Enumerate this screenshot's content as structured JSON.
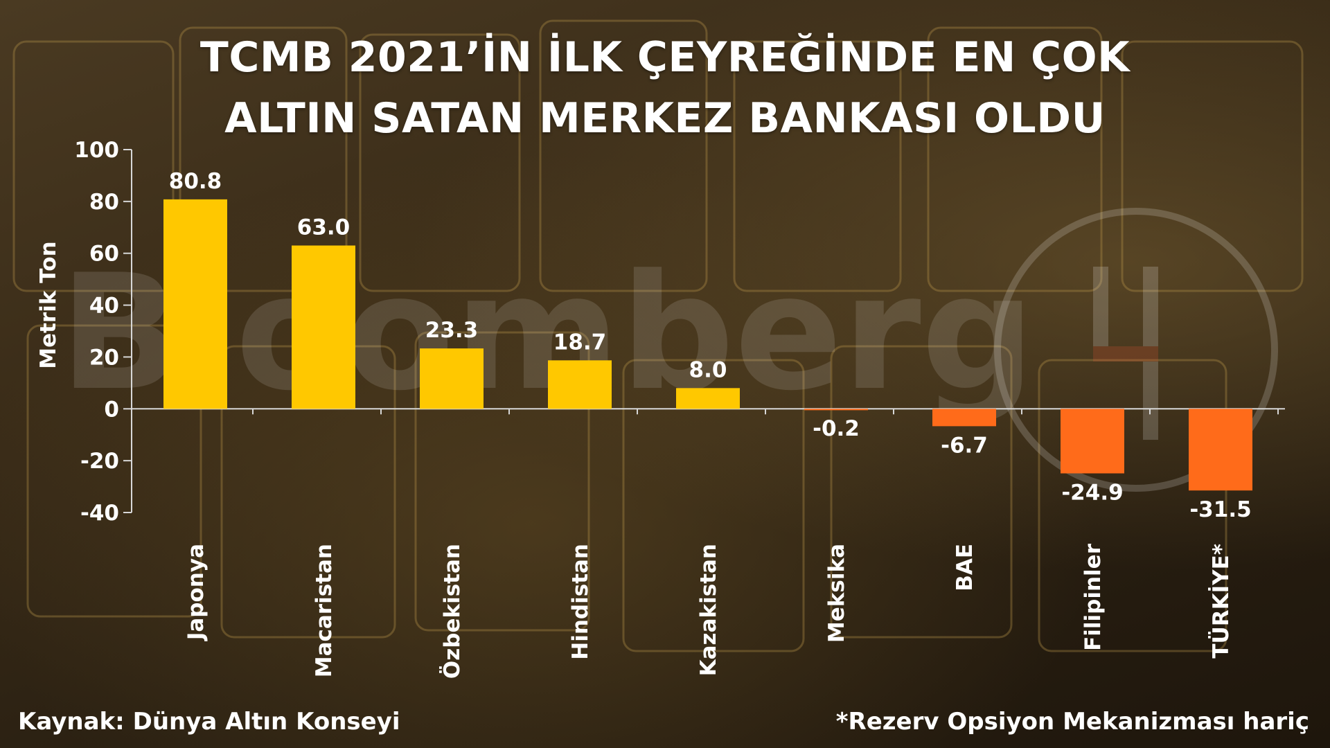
{
  "title_lines": [
    "TCMB 2021’İN İLK ÇEYREĞİNDE EN ÇOK",
    "ALTIN SATAN MERKEZ BANKASI OLDU"
  ],
  "watermark": "Bloomberg",
  "source": "Kaynak: Dünya Altın Konseyi",
  "footnote": "*Rezerv Opsiyon Mekanizması hariç",
  "colors": {
    "positive": "#FFC800",
    "negative": "#FF6B1A",
    "text": "#FFFFFF"
  },
  "chart_data": {
    "type": "bar",
    "title": "TCMB 2021’İN İLK ÇEYREĞİNDE EN ÇOK ALTIN SATAN MERKEZ BANKASI OLDU",
    "xlabel": "",
    "ylabel": "Metrik Ton",
    "ylim": [
      -40,
      100
    ],
    "yticks": [
      100,
      80,
      60,
      40,
      20,
      0,
      -20,
      -40
    ],
    "grid": false,
    "categories": [
      "Japonya",
      "Macaristan",
      "Özbekistan",
      "Hindistan",
      "Kazakistan",
      "Meksika",
      "BAE",
      "Filipinler",
      "TÜRKİYE*"
    ],
    "values": [
      80.8,
      63.0,
      23.3,
      18.7,
      8.0,
      -0.2,
      -6.7,
      -24.9,
      -31.5
    ],
    "value_labels": [
      "80.8",
      "63.0",
      "23.3",
      "18.7",
      "8.0",
      "-0.2",
      "-6.7",
      "-24.9",
      "-31.5"
    ]
  }
}
